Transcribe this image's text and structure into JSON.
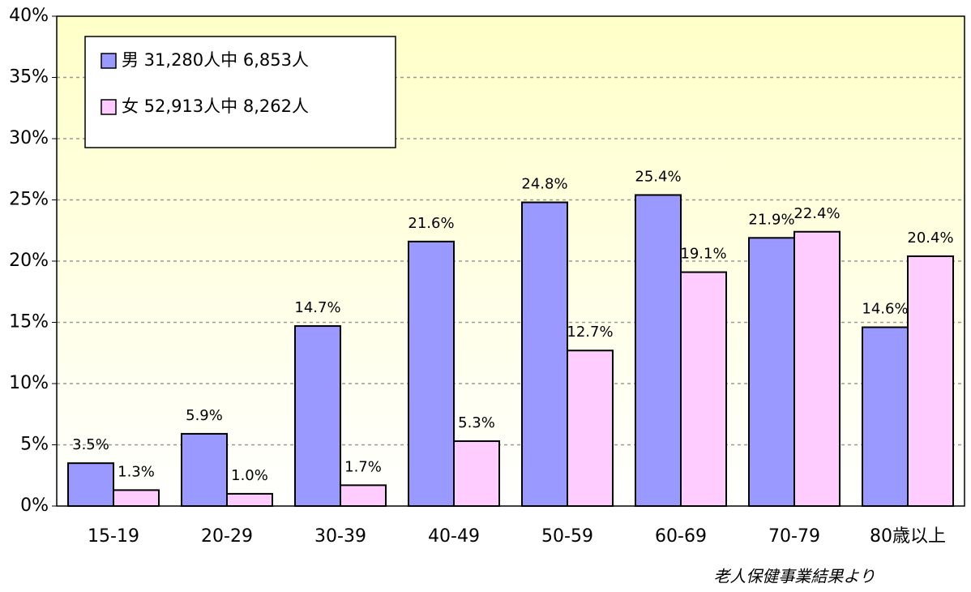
{
  "chart_data": {
    "type": "bar",
    "categories": [
      "15-19",
      "20-29",
      "30-39",
      "40-49",
      "50-59",
      "60-69",
      "70-79",
      "80歳以上"
    ],
    "series": [
      {
        "name": "男  31,280人中 6,853人",
        "color": "#9999ff",
        "values": [
          3.5,
          5.9,
          14.7,
          21.6,
          24.8,
          25.4,
          21.9,
          14.6
        ],
        "value_labels": [
          "3.5%",
          "5.9%",
          "14.7%",
          "21.6%",
          "24.8%",
          "25.4%",
          "21.9%",
          "14.6%"
        ]
      },
      {
        "name": "女  52,913人中 8,262人",
        "color": "#ffccff",
        "values": [
          1.3,
          1.0,
          1.7,
          5.3,
          12.7,
          19.1,
          22.4,
          20.4
        ],
        "value_labels": [
          "1.3%",
          "1.0%",
          "1.7%",
          "5.3%",
          "12.7%",
          "19.1%",
          "22.4%",
          "20.4%"
        ]
      }
    ],
    "ylim": [
      0,
      40
    ],
    "yticks": [
      {
        "value": 0,
        "label": "0%"
      },
      {
        "value": 5,
        "label": "5%"
      },
      {
        "value": 10,
        "label": "10%"
      },
      {
        "value": 15,
        "label": "15%"
      },
      {
        "value": 20,
        "label": "20%"
      },
      {
        "value": 25,
        "label": "25%"
      },
      {
        "value": 30,
        "label": "30%"
      },
      {
        "value": 35,
        "label": "35%"
      },
      {
        "value": 40,
        "label": "40%"
      }
    ],
    "grid": true,
    "legend": "upper left",
    "annotation": "老人保健事業結果より"
  }
}
